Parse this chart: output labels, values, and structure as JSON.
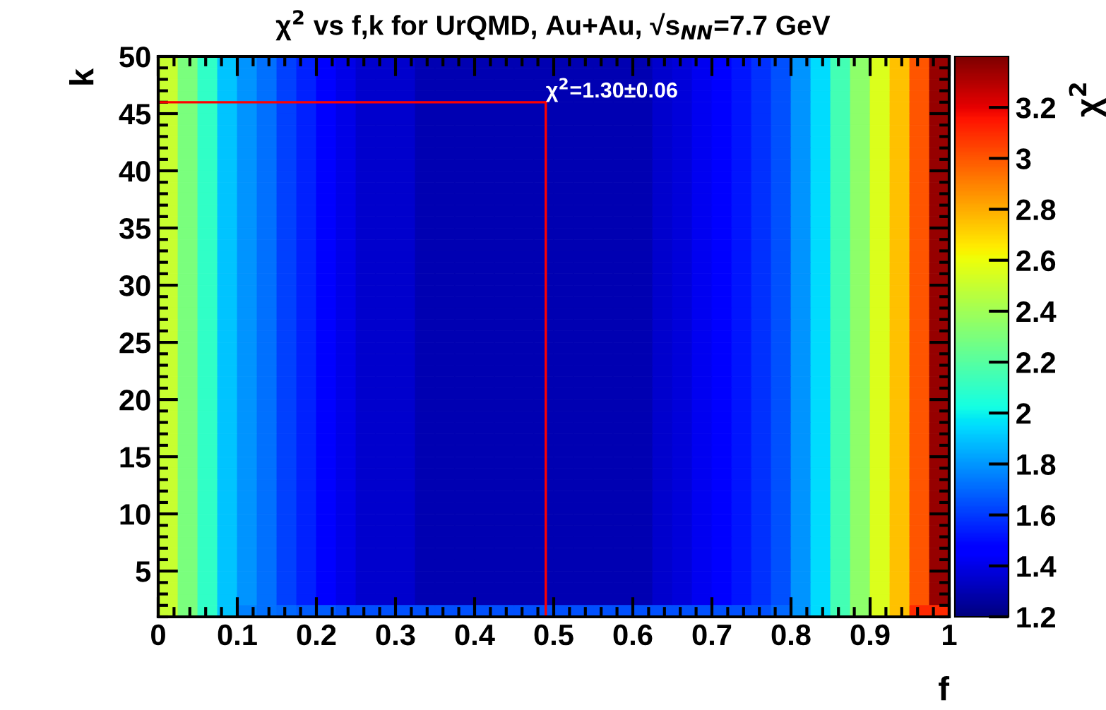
{
  "chart_data": {
    "type": "heatmap",
    "title": "χ$^{2}$ vs f,k for UrQMD, Au+Au, √s$_{NN}$=7.7 GeV",
    "xlabel": "f",
    "ylabel": "k",
    "clabel": "χ$^{2}$",
    "xlim": [
      0,
      1
    ],
    "xticks": [
      0,
      0.1,
      0.2,
      0.3,
      0.4,
      0.5,
      0.6,
      0.7,
      0.8,
      0.9,
      1
    ],
    "ylim": [
      1,
      50
    ],
    "yticks": [
      5,
      10,
      15,
      20,
      25,
      30,
      35,
      40,
      45,
      50
    ],
    "clim": [
      1.2,
      3.4
    ],
    "cticks": [
      1.2,
      1.4,
      1.6,
      1.8,
      2,
      2.2,
      2.4,
      2.6,
      2.8,
      3,
      3.2
    ],
    "ref_lines": [
      {
        "axis": "x",
        "value": 0.49,
        "color": "#ff0000"
      },
      {
        "axis": "y",
        "value": 46,
        "color": "#ff0000"
      }
    ],
    "annotations": [
      {
        "text": "χ$^{2}$=1.30±0.06",
        "x": 0.49,
        "y": 46
      }
    ],
    "grid": false,
    "cells": [
      [
        2.5,
        2.3,
        2.1,
        1.9,
        1.8,
        1.72,
        1.62,
        1.55,
        1.45,
        1.4,
        1.35,
        1.35,
        1.35,
        1.3,
        1.3,
        1.3,
        1.3,
        1.3,
        1.3,
        1.3,
        1.3,
        1.3,
        1.3,
        1.3,
        1.3,
        1.35,
        1.38,
        1.42,
        1.48,
        1.52,
        1.58,
        1.65,
        1.8,
        1.95,
        2.15,
        2.35,
        2.55,
        2.75,
        3.0,
        3.35
      ],
      [
        2.5,
        2.3,
        2.1,
        1.9,
        1.8,
        1.72,
        1.62,
        1.55,
        1.45,
        1.4,
        1.35,
        1.35,
        1.35,
        1.3,
        1.3,
        1.3,
        1.3,
        1.3,
        1.3,
        1.3,
        1.3,
        1.3,
        1.3,
        1.3,
        1.3,
        1.35,
        1.38,
        1.42,
        1.48,
        1.52,
        1.58,
        1.65,
        1.8,
        1.95,
        2.15,
        2.35,
        2.55,
        2.75,
        3.0,
        3.35
      ],
      [
        2.5,
        2.3,
        2.1,
        1.9,
        1.8,
        1.72,
        1.62,
        1.55,
        1.45,
        1.4,
        1.35,
        1.35,
        1.35,
        1.3,
        1.3,
        1.3,
        1.3,
        1.3,
        1.3,
        1.3,
        1.3,
        1.3,
        1.3,
        1.3,
        1.3,
        1.35,
        1.38,
        1.42,
        1.48,
        1.52,
        1.58,
        1.65,
        1.8,
        1.95,
        2.15,
        2.35,
        2.55,
        2.75,
        3.0,
        3.35
      ],
      [
        2.5,
        2.3,
        2.1,
        1.9,
        1.8,
        1.72,
        1.62,
        1.55,
        1.45,
        1.4,
        1.35,
        1.35,
        1.35,
        1.3,
        1.3,
        1.3,
        1.3,
        1.3,
        1.3,
        1.3,
        1.3,
        1.3,
        1.3,
        1.3,
        1.3,
        1.35,
        1.38,
        1.42,
        1.48,
        1.52,
        1.58,
        1.65,
        1.8,
        1.95,
        2.15,
        2.35,
        2.55,
        2.75,
        3.0,
        3.35
      ],
      [
        2.5,
        2.3,
        2.1,
        1.9,
        1.8,
        1.72,
        1.62,
        1.55,
        1.45,
        1.4,
        1.35,
        1.35,
        1.35,
        1.3,
        1.3,
        1.3,
        1.3,
        1.3,
        1.3,
        1.3,
        1.3,
        1.3,
        1.3,
        1.3,
        1.3,
        1.35,
        1.38,
        1.42,
        1.48,
        1.52,
        1.58,
        1.65,
        1.8,
        1.95,
        2.15,
        2.35,
        2.55,
        2.75,
        3.0,
        3.35
      ],
      [
        2.5,
        2.3,
        2.1,
        1.9,
        1.8,
        1.72,
        1.62,
        1.55,
        1.45,
        1.4,
        1.35,
        1.35,
        1.35,
        1.3,
        1.3,
        1.3,
        1.3,
        1.3,
        1.3,
        1.3,
        1.3,
        1.3,
        1.3,
        1.3,
        1.3,
        1.35,
        1.38,
        1.42,
        1.48,
        1.52,
        1.58,
        1.65,
        1.8,
        1.95,
        2.15,
        2.35,
        2.55,
        2.75,
        3.0,
        3.35
      ],
      [
        2.5,
        2.3,
        2.1,
        1.9,
        1.8,
        1.72,
        1.62,
        1.55,
        1.45,
        1.4,
        1.35,
        1.35,
        1.35,
        1.3,
        1.3,
        1.3,
        1.3,
        1.3,
        1.3,
        1.3,
        1.3,
        1.3,
        1.3,
        1.3,
        1.3,
        1.35,
        1.38,
        1.42,
        1.48,
        1.52,
        1.58,
        1.65,
        1.8,
        1.95,
        2.15,
        2.35,
        2.55,
        2.75,
        3.0,
        3.35
      ],
      [
        2.5,
        2.3,
        2.1,
        1.9,
        1.8,
        1.72,
        1.62,
        1.55,
        1.45,
        1.4,
        1.35,
        1.35,
        1.35,
        1.3,
        1.3,
        1.3,
        1.3,
        1.3,
        1.3,
        1.3,
        1.3,
        1.3,
        1.3,
        1.3,
        1.3,
        1.35,
        1.38,
        1.42,
        1.48,
        1.52,
        1.58,
        1.65,
        1.8,
        1.95,
        2.15,
        2.35,
        2.55,
        2.75,
        3.0,
        3.35
      ],
      [
        2.5,
        2.3,
        2.1,
        1.9,
        1.8,
        1.72,
        1.62,
        1.55,
        1.45,
        1.4,
        1.35,
        1.35,
        1.35,
        1.3,
        1.3,
        1.3,
        1.3,
        1.3,
        1.3,
        1.3,
        1.3,
        1.3,
        1.3,
        1.3,
        1.3,
        1.35,
        1.38,
        1.42,
        1.48,
        1.52,
        1.58,
        1.65,
        1.8,
        1.95,
        2.15,
        2.35,
        2.55,
        2.75,
        3.0,
        3.35
      ],
      [
        2.5,
        2.3,
        2.1,
        1.9,
        1.8,
        1.72,
        1.62,
        1.55,
        1.45,
        1.4,
        1.35,
        1.35,
        1.35,
        1.3,
        1.3,
        1.3,
        1.3,
        1.3,
        1.3,
        1.3,
        1.3,
        1.3,
        1.3,
        1.3,
        1.3,
        1.35,
        1.38,
        1.42,
        1.48,
        1.52,
        1.58,
        1.65,
        1.8,
        1.95,
        2.15,
        2.35,
        2.55,
        2.75,
        3.0,
        3.35
      ],
      [
        2.5,
        2.3,
        2.1,
        1.9,
        1.8,
        1.72,
        1.62,
        1.55,
        1.45,
        1.4,
        1.35,
        1.35,
        1.35,
        1.3,
        1.3,
        1.3,
        1.3,
        1.3,
        1.3,
        1.3,
        1.3,
        1.3,
        1.3,
        1.3,
        1.3,
        1.35,
        1.38,
        1.42,
        1.48,
        1.52,
        1.58,
        1.65,
        1.8,
        1.95,
        2.15,
        2.35,
        2.55,
        2.75,
        3.0,
        3.35
      ],
      [
        2.5,
        2.3,
        2.1,
        1.9,
        1.8,
        1.72,
        1.62,
        1.55,
        1.45,
        1.4,
        1.35,
        1.35,
        1.35,
        1.3,
        1.3,
        1.3,
        1.3,
        1.3,
        1.3,
        1.3,
        1.3,
        1.3,
        1.3,
        1.3,
        1.3,
        1.35,
        1.38,
        1.42,
        1.48,
        1.52,
        1.58,
        1.65,
        1.8,
        1.95,
        2.15,
        2.35,
        2.55,
        2.75,
        3.0,
        3.35
      ],
      [
        2.5,
        2.3,
        2.1,
        1.9,
        1.8,
        1.72,
        1.62,
        1.55,
        1.45,
        1.4,
        1.35,
        1.35,
        1.35,
        1.3,
        1.3,
        1.3,
        1.3,
        1.3,
        1.3,
        1.3,
        1.3,
        1.3,
        1.3,
        1.3,
        1.3,
        1.35,
        1.38,
        1.42,
        1.48,
        1.52,
        1.58,
        1.65,
        1.8,
        1.95,
        2.15,
        2.35,
        2.55,
        2.75,
        3.0,
        3.35
      ],
      [
        2.5,
        2.3,
        2.1,
        1.9,
        1.8,
        1.72,
        1.62,
        1.55,
        1.45,
        1.4,
        1.35,
        1.35,
        1.35,
        1.3,
        1.3,
        1.3,
        1.3,
        1.3,
        1.3,
        1.3,
        1.3,
        1.3,
        1.3,
        1.3,
        1.3,
        1.35,
        1.38,
        1.42,
        1.48,
        1.52,
        1.58,
        1.65,
        1.8,
        1.95,
        2.15,
        2.35,
        2.55,
        2.75,
        3.0,
        3.35
      ],
      [
        2.5,
        2.3,
        2.1,
        1.9,
        1.8,
        1.72,
        1.62,
        1.55,
        1.45,
        1.4,
        1.35,
        1.35,
        1.35,
        1.3,
        1.3,
        1.3,
        1.3,
        1.3,
        1.3,
        1.3,
        1.3,
        1.3,
        1.3,
        1.3,
        1.3,
        1.35,
        1.38,
        1.42,
        1.48,
        1.52,
        1.58,
        1.65,
        1.8,
        1.95,
        2.15,
        2.35,
        2.55,
        2.75,
        3.0,
        3.35
      ],
      [
        2.5,
        2.3,
        2.1,
        1.9,
        1.8,
        1.72,
        1.62,
        1.55,
        1.45,
        1.4,
        1.35,
        1.35,
        1.35,
        1.3,
        1.3,
        1.3,
        1.3,
        1.3,
        1.3,
        1.3,
        1.3,
        1.3,
        1.3,
        1.3,
        1.3,
        1.35,
        1.38,
        1.42,
        1.48,
        1.52,
        1.58,
        1.65,
        1.8,
        1.95,
        2.15,
        2.35,
        2.55,
        2.75,
        3.0,
        3.35
      ],
      [
        2.5,
        2.3,
        2.1,
        1.9,
        1.8,
        1.72,
        1.62,
        1.55,
        1.45,
        1.4,
        1.35,
        1.35,
        1.35,
        1.3,
        1.3,
        1.3,
        1.3,
        1.3,
        1.3,
        1.3,
        1.3,
        1.3,
        1.3,
        1.3,
        1.3,
        1.35,
        1.38,
        1.42,
        1.48,
        1.52,
        1.58,
        1.65,
        1.8,
        1.95,
        2.15,
        2.35,
        2.55,
        2.75,
        3.0,
        3.35
      ],
      [
        2.5,
        2.3,
        2.1,
        1.9,
        1.8,
        1.72,
        1.62,
        1.55,
        1.45,
        1.4,
        1.35,
        1.35,
        1.35,
        1.3,
        1.3,
        1.3,
        1.3,
        1.3,
        1.3,
        1.3,
        1.3,
        1.3,
        1.3,
        1.3,
        1.3,
        1.35,
        1.38,
        1.42,
        1.48,
        1.52,
        1.58,
        1.65,
        1.8,
        1.95,
        2.15,
        2.35,
        2.55,
        2.75,
        3.0,
        3.35
      ],
      [
        2.5,
        2.3,
        2.1,
        1.9,
        1.8,
        1.72,
        1.62,
        1.55,
        1.45,
        1.4,
        1.35,
        1.35,
        1.35,
        1.3,
        1.3,
        1.3,
        1.3,
        1.3,
        1.3,
        1.3,
        1.3,
        1.3,
        1.3,
        1.3,
        1.3,
        1.35,
        1.38,
        1.42,
        1.48,
        1.52,
        1.58,
        1.65,
        1.8,
        1.95,
        2.15,
        2.35,
        2.55,
        2.75,
        3.0,
        3.35
      ],
      [
        2.5,
        2.3,
        2.1,
        1.9,
        1.8,
        1.72,
        1.62,
        1.55,
        1.45,
        1.4,
        1.35,
        1.35,
        1.35,
        1.3,
        1.3,
        1.3,
        1.3,
        1.3,
        1.3,
        1.3,
        1.3,
        1.3,
        1.3,
        1.3,
        1.3,
        1.35,
        1.38,
        1.42,
        1.48,
        1.52,
        1.58,
        1.65,
        1.8,
        1.95,
        2.15,
        2.35,
        2.55,
        2.75,
        3.0,
        3.35
      ],
      [
        2.5,
        2.3,
        2.1,
        1.9,
        1.8,
        1.72,
        1.62,
        1.55,
        1.45,
        1.4,
        1.35,
        1.35,
        1.35,
        1.3,
        1.3,
        1.3,
        1.3,
        1.3,
        1.3,
        1.3,
        1.3,
        1.3,
        1.3,
        1.3,
        1.3,
        1.35,
        1.38,
        1.42,
        1.48,
        1.52,
        1.58,
        1.65,
        1.8,
        1.95,
        2.15,
        2.35,
        2.55,
        2.75,
        3.0,
        3.35
      ],
      [
        2.5,
        2.3,
        2.1,
        1.9,
        1.8,
        1.72,
        1.62,
        1.55,
        1.45,
        1.4,
        1.35,
        1.35,
        1.35,
        1.3,
        1.3,
        1.3,
        1.3,
        1.3,
        1.3,
        1.3,
        1.3,
        1.3,
        1.3,
        1.3,
        1.3,
        1.35,
        1.38,
        1.42,
        1.48,
        1.52,
        1.58,
        1.65,
        1.8,
        1.95,
        2.15,
        2.35,
        2.55,
        2.75,
        3.0,
        3.35
      ],
      [
        2.5,
        2.3,
        2.1,
        1.9,
        1.8,
        1.72,
        1.62,
        1.55,
        1.45,
        1.4,
        1.35,
        1.35,
        1.35,
        1.3,
        1.3,
        1.3,
        1.3,
        1.3,
        1.3,
        1.3,
        1.3,
        1.3,
        1.3,
        1.3,
        1.3,
        1.35,
        1.38,
        1.42,
        1.48,
        1.52,
        1.58,
        1.65,
        1.8,
        1.95,
        2.15,
        2.35,
        2.55,
        2.75,
        3.0,
        3.35
      ],
      [
        2.5,
        2.3,
        2.1,
        1.9,
        1.8,
        1.72,
        1.62,
        1.55,
        1.45,
        1.4,
        1.35,
        1.35,
        1.35,
        1.3,
        1.3,
        1.3,
        1.3,
        1.3,
        1.3,
        1.3,
        1.3,
        1.3,
        1.3,
        1.3,
        1.3,
        1.35,
        1.38,
        1.42,
        1.48,
        1.52,
        1.58,
        1.65,
        1.8,
        1.95,
        2.15,
        2.35,
        2.55,
        2.75,
        3.0,
        3.35
      ],
      [
        2.5,
        2.3,
        2.1,
        1.9,
        1.8,
        1.72,
        1.62,
        1.55,
        1.45,
        1.4,
        1.35,
        1.35,
        1.35,
        1.3,
        1.3,
        1.3,
        1.3,
        1.3,
        1.3,
        1.3,
        1.3,
        1.3,
        1.3,
        1.3,
        1.3,
        1.35,
        1.38,
        1.42,
        1.48,
        1.52,
        1.58,
        1.65,
        1.8,
        1.95,
        2.15,
        2.35,
        2.55,
        2.75,
        3.0,
        3.35
      ],
      [
        2.5,
        2.3,
        2.1,
        1.9,
        1.8,
        1.72,
        1.62,
        1.55,
        1.45,
        1.4,
        1.35,
        1.35,
        1.35,
        1.3,
        1.3,
        1.3,
        1.3,
        1.3,
        1.3,
        1.3,
        1.3,
        1.3,
        1.3,
        1.3,
        1.3,
        1.35,
        1.38,
        1.42,
        1.48,
        1.52,
        1.58,
        1.65,
        1.8,
        1.95,
        2.15,
        2.35,
        2.55,
        2.75,
        3.0,
        3.35
      ],
      [
        2.5,
        2.3,
        2.1,
        1.9,
        1.8,
        1.72,
        1.62,
        1.55,
        1.45,
        1.4,
        1.35,
        1.35,
        1.35,
        1.3,
        1.3,
        1.3,
        1.3,
        1.3,
        1.3,
        1.3,
        1.3,
        1.3,
        1.3,
        1.3,
        1.3,
        1.35,
        1.38,
        1.42,
        1.48,
        1.52,
        1.58,
        1.65,
        1.8,
        1.95,
        2.15,
        2.35,
        2.55,
        2.75,
        3.0,
        3.35
      ],
      [
        2.5,
        2.3,
        2.1,
        1.9,
        1.8,
        1.72,
        1.62,
        1.55,
        1.45,
        1.4,
        1.35,
        1.35,
        1.35,
        1.3,
        1.3,
        1.3,
        1.3,
        1.3,
        1.3,
        1.3,
        1.3,
        1.3,
        1.3,
        1.3,
        1.3,
        1.35,
        1.38,
        1.42,
        1.48,
        1.52,
        1.58,
        1.65,
        1.8,
        1.95,
        2.15,
        2.35,
        2.55,
        2.75,
        3.0,
        3.35
      ],
      [
        2.5,
        2.3,
        2.1,
        1.9,
        1.8,
        1.72,
        1.62,
        1.55,
        1.45,
        1.4,
        1.35,
        1.35,
        1.35,
        1.3,
        1.3,
        1.3,
        1.3,
        1.3,
        1.3,
        1.3,
        1.3,
        1.3,
        1.3,
        1.3,
        1.3,
        1.35,
        1.38,
        1.42,
        1.48,
        1.52,
        1.58,
        1.65,
        1.8,
        1.95,
        2.15,
        2.35,
        2.55,
        2.75,
        3.0,
        3.35
      ],
      [
        2.5,
        2.3,
        2.1,
        1.9,
        1.8,
        1.72,
        1.62,
        1.55,
        1.45,
        1.4,
        1.35,
        1.35,
        1.35,
        1.3,
        1.3,
        1.3,
        1.3,
        1.3,
        1.3,
        1.3,
        1.3,
        1.3,
        1.3,
        1.3,
        1.3,
        1.35,
        1.38,
        1.42,
        1.48,
        1.52,
        1.58,
        1.65,
        1.8,
        1.95,
        2.15,
        2.35,
        2.55,
        2.75,
        3.0,
        3.35
      ],
      [
        2.5,
        2.3,
        2.1,
        1.9,
        1.8,
        1.72,
        1.62,
        1.55,
        1.45,
        1.4,
        1.35,
        1.35,
        1.35,
        1.3,
        1.3,
        1.3,
        1.3,
        1.3,
        1.3,
        1.3,
        1.3,
        1.3,
        1.3,
        1.3,
        1.3,
        1.35,
        1.38,
        1.42,
        1.48,
        1.52,
        1.58,
        1.65,
        1.8,
        1.95,
        2.15,
        2.35,
        2.55,
        2.75,
        3.0,
        3.35
      ],
      [
        2.5,
        2.3,
        2.1,
        1.9,
        1.8,
        1.72,
        1.62,
        1.55,
        1.45,
        1.4,
        1.35,
        1.35,
        1.35,
        1.3,
        1.3,
        1.3,
        1.3,
        1.3,
        1.3,
        1.3,
        1.3,
        1.3,
        1.3,
        1.3,
        1.3,
        1.35,
        1.38,
        1.42,
        1.48,
        1.52,
        1.58,
        1.65,
        1.8,
        1.95,
        2.15,
        2.35,
        2.55,
        2.75,
        3.0,
        3.35
      ],
      [
        2.5,
        2.3,
        2.1,
        1.9,
        1.8,
        1.72,
        1.62,
        1.55,
        1.45,
        1.4,
        1.35,
        1.35,
        1.35,
        1.3,
        1.3,
        1.3,
        1.3,
        1.3,
        1.3,
        1.3,
        1.3,
        1.3,
        1.3,
        1.3,
        1.3,
        1.35,
        1.38,
        1.42,
        1.48,
        1.52,
        1.58,
        1.65,
        1.8,
        1.95,
        2.15,
        2.35,
        2.55,
        2.75,
        3.0,
        3.35
      ],
      [
        2.5,
        2.3,
        2.1,
        1.9,
        1.8,
        1.72,
        1.62,
        1.55,
        1.45,
        1.4,
        1.35,
        1.35,
        1.35,
        1.3,
        1.3,
        1.3,
        1.3,
        1.3,
        1.3,
        1.3,
        1.3,
        1.3,
        1.3,
        1.3,
        1.3,
        1.35,
        1.38,
        1.42,
        1.48,
        1.52,
        1.58,
        1.65,
        1.8,
        1.95,
        2.15,
        2.35,
        2.55,
        2.75,
        3.0,
        3.35
      ],
      [
        2.5,
        2.3,
        2.1,
        1.9,
        1.8,
        1.72,
        1.62,
        1.55,
        1.45,
        1.4,
        1.35,
        1.35,
        1.35,
        1.3,
        1.3,
        1.3,
        1.3,
        1.3,
        1.3,
        1.3,
        1.3,
        1.3,
        1.3,
        1.3,
        1.3,
        1.35,
        1.38,
        1.42,
        1.48,
        1.52,
        1.58,
        1.65,
        1.8,
        1.95,
        2.15,
        2.35,
        2.55,
        2.75,
        3.0,
        3.35
      ],
      [
        2.5,
        2.3,
        2.1,
        1.9,
        1.8,
        1.72,
        1.62,
        1.55,
        1.45,
        1.4,
        1.35,
        1.35,
        1.35,
        1.3,
        1.3,
        1.3,
        1.3,
        1.3,
        1.3,
        1.3,
        1.3,
        1.3,
        1.3,
        1.3,
        1.3,
        1.35,
        1.38,
        1.42,
        1.48,
        1.52,
        1.58,
        1.65,
        1.8,
        1.95,
        2.15,
        2.35,
        2.55,
        2.75,
        3.0,
        3.35
      ],
      [
        2.5,
        2.3,
        2.1,
        1.9,
        1.8,
        1.72,
        1.62,
        1.55,
        1.45,
        1.4,
        1.35,
        1.35,
        1.35,
        1.3,
        1.3,
        1.3,
        1.3,
        1.3,
        1.3,
        1.3,
        1.3,
        1.3,
        1.3,
        1.3,
        1.3,
        1.35,
        1.38,
        1.42,
        1.48,
        1.52,
        1.58,
        1.65,
        1.8,
        1.95,
        2.15,
        2.35,
        2.55,
        2.75,
        3.0,
        3.35
      ],
      [
        2.5,
        2.3,
        2.1,
        1.9,
        1.8,
        1.72,
        1.62,
        1.55,
        1.45,
        1.4,
        1.35,
        1.35,
        1.35,
        1.3,
        1.3,
        1.3,
        1.3,
        1.3,
        1.3,
        1.3,
        1.3,
        1.3,
        1.3,
        1.3,
        1.3,
        1.35,
        1.38,
        1.42,
        1.48,
        1.52,
        1.58,
        1.65,
        1.8,
        1.95,
        2.15,
        2.35,
        2.55,
        2.75,
        3.0,
        3.35
      ],
      [
        2.5,
        2.3,
        2.1,
        1.9,
        1.8,
        1.72,
        1.62,
        1.55,
        1.45,
        1.4,
        1.35,
        1.35,
        1.35,
        1.3,
        1.3,
        1.3,
        1.3,
        1.3,
        1.3,
        1.3,
        1.3,
        1.3,
        1.3,
        1.3,
        1.3,
        1.35,
        1.38,
        1.42,
        1.48,
        1.52,
        1.58,
        1.65,
        1.8,
        1.95,
        2.15,
        2.35,
        2.55,
        2.75,
        3.0,
        3.35
      ],
      [
        2.5,
        2.3,
        2.1,
        1.9,
        1.8,
        1.72,
        1.62,
        1.55,
        1.45,
        1.4,
        1.35,
        1.35,
        1.35,
        1.3,
        1.3,
        1.3,
        1.3,
        1.3,
        1.3,
        1.3,
        1.3,
        1.3,
        1.3,
        1.3,
        1.3,
        1.35,
        1.38,
        1.42,
        1.48,
        1.52,
        1.58,
        1.65,
        1.8,
        1.95,
        2.15,
        2.35,
        2.55,
        2.75,
        3.0,
        3.35
      ],
      [
        2.5,
        2.3,
        2.1,
        1.9,
        1.8,
        1.72,
        1.62,
        1.55,
        1.45,
        1.4,
        1.35,
        1.35,
        1.35,
        1.3,
        1.3,
        1.3,
        1.3,
        1.3,
        1.3,
        1.3,
        1.3,
        1.3,
        1.3,
        1.3,
        1.3,
        1.35,
        1.38,
        1.42,
        1.48,
        1.52,
        1.58,
        1.65,
        1.8,
        1.95,
        2.15,
        2.35,
        2.55,
        2.75,
        3.0,
        3.35
      ],
      [
        2.5,
        2.3,
        2.1,
        1.9,
        1.8,
        1.72,
        1.62,
        1.55,
        1.45,
        1.4,
        1.35,
        1.35,
        1.35,
        1.3,
        1.3,
        1.3,
        1.3,
        1.3,
        1.3,
        1.3,
        1.3,
        1.3,
        1.3,
        1.3,
        1.3,
        1.35,
        1.38,
        1.42,
        1.48,
        1.52,
        1.58,
        1.65,
        1.8,
        1.95,
        2.15,
        2.35,
        2.55,
        2.75,
        3.0,
        3.35
      ],
      [
        2.5,
        2.3,
        2.1,
        1.9,
        1.8,
        1.72,
        1.62,
        1.55,
        1.45,
        1.4,
        1.35,
        1.35,
        1.35,
        1.3,
        1.3,
        1.3,
        1.3,
        1.3,
        1.3,
        1.3,
        1.3,
        1.3,
        1.3,
        1.3,
        1.3,
        1.35,
        1.38,
        1.42,
        1.48,
        1.52,
        1.58,
        1.65,
        1.8,
        1.95,
        2.15,
        2.35,
        2.55,
        2.75,
        3.0,
        3.35
      ],
      [
        2.5,
        2.3,
        2.1,
        1.9,
        1.8,
        1.72,
        1.62,
        1.55,
        1.45,
        1.4,
        1.35,
        1.35,
        1.35,
        1.3,
        1.3,
        1.3,
        1.3,
        1.3,
        1.3,
        1.3,
        1.3,
        1.3,
        1.3,
        1.3,
        1.3,
        1.35,
        1.38,
        1.42,
        1.48,
        1.52,
        1.58,
        1.65,
        1.8,
        1.95,
        2.15,
        2.35,
        2.55,
        2.75,
        3.0,
        3.35
      ],
      [
        2.5,
        2.3,
        2.1,
        1.9,
        1.8,
        1.72,
        1.62,
        1.55,
        1.45,
        1.4,
        1.35,
        1.35,
        1.35,
        1.3,
        1.3,
        1.3,
        1.3,
        1.3,
        1.3,
        1.3,
        1.3,
        1.3,
        1.3,
        1.3,
        1.3,
        1.35,
        1.38,
        1.42,
        1.48,
        1.52,
        1.58,
        1.65,
        1.8,
        1.95,
        2.15,
        2.35,
        2.55,
        2.75,
        3.0,
        3.35
      ],
      [
        2.5,
        2.3,
        2.1,
        1.9,
        1.8,
        1.72,
        1.62,
        1.55,
        1.45,
        1.4,
        1.35,
        1.35,
        1.35,
        1.3,
        1.3,
        1.3,
        1.3,
        1.3,
        1.3,
        1.3,
        1.3,
        1.3,
        1.3,
        1.3,
        1.3,
        1.35,
        1.38,
        1.42,
        1.48,
        1.52,
        1.58,
        1.65,
        1.8,
        1.95,
        2.15,
        2.35,
        2.55,
        2.75,
        3.0,
        3.35
      ],
      [
        2.5,
        2.3,
        2.1,
        1.9,
        1.8,
        1.72,
        1.62,
        1.55,
        1.45,
        1.4,
        1.35,
        1.35,
        1.35,
        1.3,
        1.3,
        1.3,
        1.3,
        1.3,
        1.3,
        1.3,
        1.3,
        1.3,
        1.3,
        1.3,
        1.3,
        1.35,
        1.38,
        1.42,
        1.48,
        1.52,
        1.58,
        1.65,
        1.8,
        1.95,
        2.15,
        2.35,
        2.55,
        2.75,
        3.0,
        3.35
      ],
      [
        2.5,
        2.3,
        2.1,
        1.9,
        1.8,
        1.72,
        1.62,
        1.55,
        1.45,
        1.4,
        1.35,
        1.35,
        1.35,
        1.3,
        1.3,
        1.3,
        1.3,
        1.3,
        1.3,
        1.3,
        1.3,
        1.3,
        1.3,
        1.3,
        1.3,
        1.35,
        1.38,
        1.42,
        1.48,
        1.52,
        1.58,
        1.65,
        1.8,
        1.95,
        2.15,
        2.35,
        2.55,
        2.75,
        3.0,
        3.35
      ],
      [
        2.5,
        2.3,
        2.1,
        1.9,
        1.75,
        1.72,
        1.7,
        1.68,
        1.68,
        1.65,
        1.65,
        1.65,
        1.65,
        1.65,
        1.65,
        1.65,
        1.65,
        1.65,
        1.65,
        1.65,
        1.65,
        1.65,
        1.65,
        1.65,
        1.65,
        1.65,
        1.65,
        1.65,
        1.65,
        1.65,
        1.65,
        1.7,
        1.8,
        1.95,
        2.15,
        2.35,
        2.55,
        2.75,
        3.1,
        3.1
      ]
    ]
  }
}
